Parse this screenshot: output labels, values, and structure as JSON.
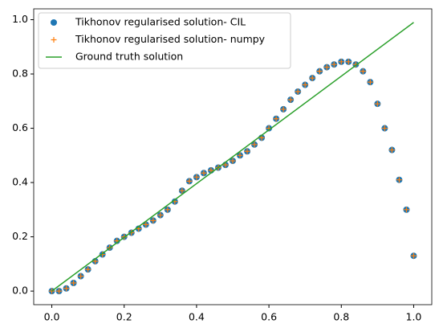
{
  "chart_data": {
    "type": "scatter",
    "x": [
      0.0,
      0.02,
      0.04,
      0.06,
      0.08,
      0.1,
      0.12,
      0.14,
      0.16,
      0.18,
      0.2,
      0.22,
      0.24,
      0.26,
      0.28,
      0.3,
      0.32,
      0.34,
      0.36,
      0.38,
      0.4,
      0.42,
      0.44,
      0.46,
      0.48,
      0.5,
      0.52,
      0.54,
      0.56,
      0.58,
      0.6,
      0.62,
      0.64,
      0.66,
      0.68,
      0.7,
      0.72,
      0.74,
      0.76,
      0.78,
      0.8,
      0.82,
      0.84,
      0.86,
      0.88,
      0.9,
      0.92,
      0.94,
      0.96,
      0.98,
      1.0
    ],
    "series": [
      {
        "name": "Tikhonov regularised solution- CIL",
        "color": "#1f77b4",
        "marker": "circle",
        "values": [
          0.0,
          0.0,
          0.01,
          0.03,
          0.055,
          0.08,
          0.11,
          0.135,
          0.16,
          0.185,
          0.2,
          0.215,
          0.23,
          0.245,
          0.26,
          0.28,
          0.3,
          0.33,
          0.37,
          0.405,
          0.42,
          0.435,
          0.445,
          0.455,
          0.465,
          0.48,
          0.5,
          0.515,
          0.54,
          0.565,
          0.6,
          0.635,
          0.67,
          0.705,
          0.735,
          0.76,
          0.785,
          0.81,
          0.825,
          0.835,
          0.845,
          0.845,
          0.835,
          0.81,
          0.77,
          0.69,
          0.6,
          0.52,
          0.41,
          0.3,
          0.13
        ]
      },
      {
        "name": "Tikhonov regularised solution- numpy",
        "color": "#ff7f0e",
        "marker": "plus",
        "values": [
          0.0,
          0.0,
          0.01,
          0.03,
          0.055,
          0.08,
          0.11,
          0.135,
          0.16,
          0.185,
          0.2,
          0.215,
          0.23,
          0.245,
          0.26,
          0.28,
          0.3,
          0.33,
          0.37,
          0.405,
          0.42,
          0.435,
          0.445,
          0.455,
          0.465,
          0.48,
          0.5,
          0.515,
          0.54,
          0.565,
          0.6,
          0.635,
          0.67,
          0.705,
          0.735,
          0.76,
          0.785,
          0.81,
          0.825,
          0.835,
          0.845,
          0.845,
          0.835,
          0.81,
          0.77,
          0.69,
          0.6,
          0.52,
          0.41,
          0.3,
          0.13
        ]
      },
      {
        "name": "Ground truth solution",
        "color": "#2ca02c",
        "marker": "line",
        "x": [
          0.0,
          1.0
        ],
        "values": [
          0.0,
          0.99
        ]
      }
    ],
    "xlim": [
      -0.05,
      1.05
    ],
    "ylim": [
      -0.05,
      1.04
    ],
    "xticks": [
      {
        "value": 0,
        "label": "0.0"
      },
      {
        "value": 0.2,
        "label": "0.2"
      },
      {
        "value": 0.4,
        "label": "0.4"
      },
      {
        "value": 0.6,
        "label": "0.6"
      },
      {
        "value": 0.8,
        "label": "0.8"
      },
      {
        "value": 1,
        "label": "1.0"
      }
    ],
    "yticks": [
      {
        "value": 0,
        "label": "0.0"
      },
      {
        "value": 0.2,
        "label": "0.2"
      },
      {
        "value": 0.4,
        "label": "0.4"
      },
      {
        "value": 0.6,
        "label": "0.6"
      },
      {
        "value": 0.8,
        "label": "0.8"
      },
      {
        "value": 1,
        "label": "1.0"
      }
    ],
    "legend": "upper left"
  }
}
